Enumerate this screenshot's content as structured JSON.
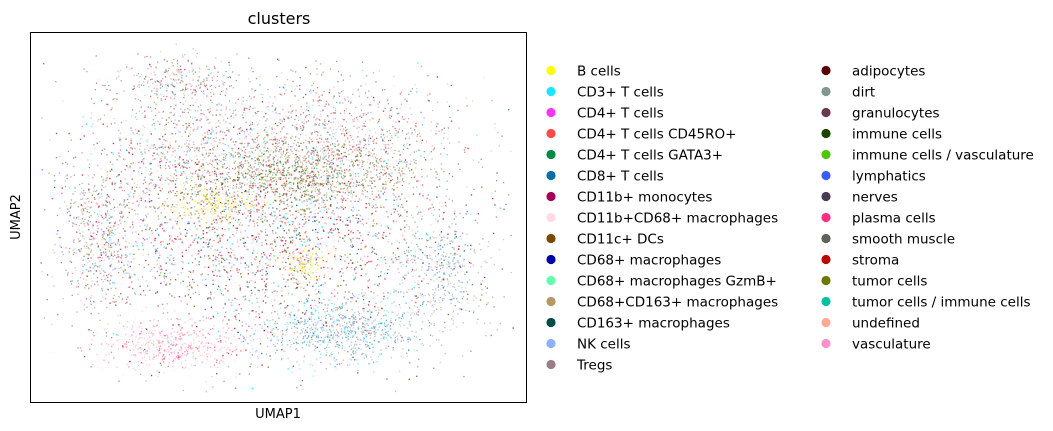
{
  "chart_data": {
    "type": "scatter",
    "title": "clusters",
    "xlabel": "UMAP1",
    "ylabel": "UMAP2",
    "grid": false,
    "ticks": "none",
    "legend_position": "right, outside plot, two columns",
    "categories": [
      {
        "name": "B cells",
        "color": "#ffff00"
      },
      {
        "name": "CD3+ T cells",
        "color": "#1ce6ff"
      },
      {
        "name": "CD4+ T cells",
        "color": "#ff34ff"
      },
      {
        "name": "CD4+ T cells CD45RO+",
        "color": "#ff4a46"
      },
      {
        "name": "CD4+ T cells GATA3+",
        "color": "#008941"
      },
      {
        "name": "CD8+ T cells",
        "color": "#006fa6"
      },
      {
        "name": "CD11b+ monocytes",
        "color": "#a30059"
      },
      {
        "name": "CD11b+CD68+ macrophages",
        "color": "#ffdbe5"
      },
      {
        "name": "CD11c+ DCs",
        "color": "#7a4900"
      },
      {
        "name": "CD68+ macrophages",
        "color": "#0000a6"
      },
      {
        "name": "CD68+ macrophages GzmB+",
        "color": "#63ffac"
      },
      {
        "name": "CD68+CD163+ macrophages",
        "color": "#b79762"
      },
      {
        "name": "CD163+ macrophages",
        "color": "#004d43"
      },
      {
        "name": "NK cells",
        "color": "#8fb0ff"
      },
      {
        "name": "Tregs",
        "color": "#997d87"
      },
      {
        "name": "adipocytes",
        "color": "#5a0007"
      },
      {
        "name": "dirt",
        "color": "#809693"
      },
      {
        "name": "granulocytes",
        "color": "#6a3a4c"
      },
      {
        "name": "immune cells",
        "color": "#1b4400"
      },
      {
        "name": "immune cells / vasculature",
        "color": "#4fc601"
      },
      {
        "name": "lymphatics",
        "color": "#3b5dff"
      },
      {
        "name": "nerves",
        "color": "#4a3b53"
      },
      {
        "name": "plasma cells",
        "color": "#ff2f80"
      },
      {
        "name": "smooth muscle",
        "color": "#61615a"
      },
      {
        "name": "stroma",
        "color": "#ba0900"
      },
      {
        "name": "tumor cells",
        "color": "#6b7900"
      },
      {
        "name": "tumor cells / immune cells",
        "color": "#00c2a0"
      },
      {
        "name": "undefined",
        "color": "#ffaa92"
      },
      {
        "name": "vasculature",
        "color": "#ff90c9"
      }
    ]
  }
}
